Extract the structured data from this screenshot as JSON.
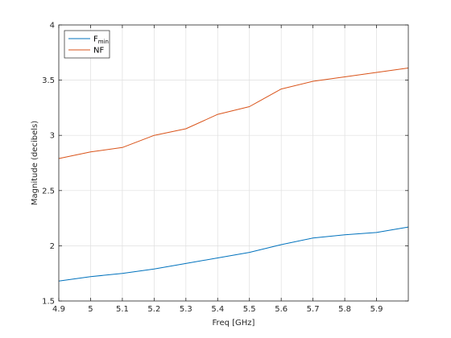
{
  "chart_data": {
    "type": "line",
    "xlabel": "Freq [GHz]",
    "ylabel": "Magnitude (decibels)",
    "xlim": [
      4.9,
      6.0
    ],
    "ylim": [
      1.5,
      4.0
    ],
    "xticks": [
      "4.9",
      "5",
      "5.1",
      "5.2",
      "5.3",
      "5.4",
      "5.5",
      "5.6",
      "5.7",
      "5.8",
      "5.9"
    ],
    "yticks": [
      "1.5",
      "2",
      "2.5",
      "3",
      "3.5",
      "4"
    ],
    "grid": true,
    "legend_placement": "top-left",
    "x": [
      4.9,
      5.0,
      5.1,
      5.2,
      5.3,
      5.4,
      5.5,
      5.6,
      5.7,
      5.8,
      5.9,
      6.0
    ],
    "series": [
      {
        "name": "F",
        "name_sub": "min",
        "color": "#0072BD",
        "values": [
          1.68,
          1.72,
          1.75,
          1.79,
          1.84,
          1.89,
          1.94,
          2.01,
          2.07,
          2.1,
          2.12,
          2.17
        ]
      },
      {
        "name": "NF",
        "name_sub": "",
        "color": "#D95319",
        "values": [
          2.79,
          2.85,
          2.89,
          3.0,
          3.06,
          3.19,
          3.26,
          3.42,
          3.49,
          3.53,
          3.57,
          3.61
        ]
      }
    ]
  }
}
